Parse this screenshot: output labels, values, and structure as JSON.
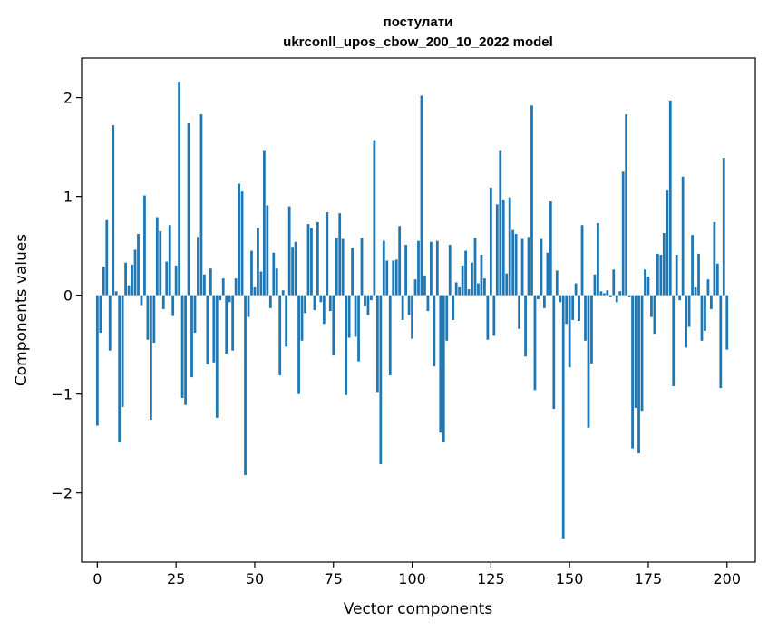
{
  "chart_data": {
    "type": "bar",
    "title": "постулати",
    "subtitle": "ukrconll_upos_cbow_200_10_2022 model",
    "xlabel": "Vector components",
    "ylabel": "Components values",
    "xlim": [
      -5,
      209
    ],
    "ylim": [
      -2.7,
      2.4
    ],
    "xticks": [
      0,
      25,
      50,
      75,
      100,
      125,
      150,
      175,
      200
    ],
    "yticks": [
      -2,
      -1,
      0,
      1,
      2
    ],
    "ytick_labels": [
      "−2",
      "−1",
      "0",
      "1",
      "2"
    ],
    "color": "#1f77b4",
    "values": [
      -1.32,
      -0.38,
      0.29,
      0.76,
      -0.56,
      1.72,
      0.04,
      -1.49,
      -1.13,
      0.33,
      0.1,
      0.31,
      0.46,
      0.62,
      -0.1,
      1.01,
      -0.45,
      -1.26,
      -0.48,
      0.79,
      0.65,
      -0.14,
      0.34,
      0.71,
      -0.21,
      0.3,
      2.16,
      -1.04,
      -1.11,
      1.74,
      -0.83,
      -0.38,
      0.59,
      1.83,
      0.21,
      -0.7,
      0.27,
      -0.68,
      -1.24,
      -0.05,
      0.17,
      -0.59,
      -0.07,
      -0.56,
      0.17,
      1.13,
      1.05,
      -1.82,
      -0.22,
      0.45,
      0.08,
      0.68,
      0.24,
      1.46,
      0.91,
      -0.13,
      0.43,
      0.27,
      -0.81,
      0.05,
      -0.52,
      0.9,
      0.49,
      0.54,
      -1.0,
      -0.46,
      -0.18,
      0.72,
      0.68,
      -0.15,
      0.74,
      -0.07,
      -0.29,
      0.84,
      -0.16,
      -0.61,
      0.58,
      0.83,
      0.57,
      -1.01,
      -0.43,
      0.48,
      -0.42,
      -0.67,
      0.58,
      -0.11,
      -0.2,
      -0.05,
      1.57,
      -0.98,
      -1.71,
      0.55,
      0.35,
      -0.81,
      0.35,
      0.36,
      0.7,
      -0.25,
      0.51,
      -0.2,
      -0.44,
      0.16,
      0.55,
      2.02,
      0.2,
      -0.16,
      0.54,
      -0.72,
      0.55,
      -1.39,
      -1.49,
      -0.46,
      0.51,
      -0.25,
      0.13,
      0.08,
      0.3,
      0.45,
      0.06,
      0.33,
      0.58,
      0.12,
      0.41,
      0.17,
      -0.45,
      1.09,
      -0.41,
      0.92,
      1.46,
      0.96,
      0.22,
      0.99,
      0.66,
      0.62,
      -0.34,
      0.57,
      -0.62,
      0.59,
      1.92,
      -0.96,
      -0.04,
      0.57,
      -0.13,
      0.43,
      0.95,
      -1.15,
      0.25,
      -0.07,
      -2.46,
      -0.29,
      -0.73,
      -0.25,
      0.12,
      -0.26,
      0.71,
      -0.46,
      -1.34,
      -0.69,
      0.21,
      0.73,
      0.04,
      0.02,
      0.05,
      -0.02,
      0.26,
      -0.07,
      0.04,
      1.25,
      1.83,
      -0.02,
      -1.55,
      -1.14,
      -1.6,
      -1.17,
      0.26,
      0.19,
      -0.22,
      -0.39,
      0.42,
      0.41,
      0.63,
      1.06,
      1.97,
      -0.92,
      0.41,
      -0.05,
      1.2,
      -0.53,
      -0.32,
      0.61,
      0.08,
      0.42,
      -0.46,
      -0.36,
      0.16,
      -0.14,
      0.74,
      0.32,
      -0.94,
      1.39,
      -0.55
    ]
  }
}
